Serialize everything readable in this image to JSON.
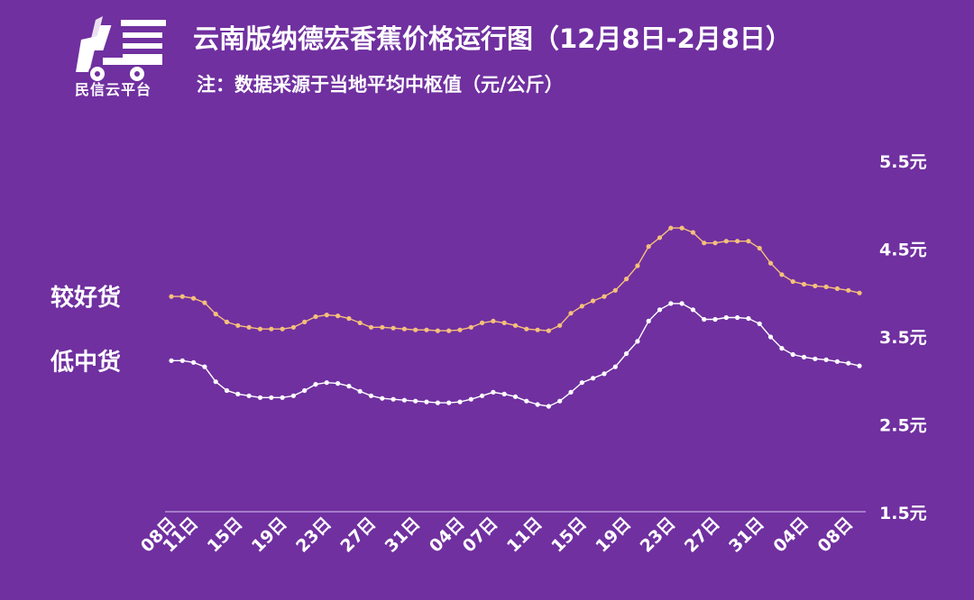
{
  "header": {
    "title": "云南版纳德宏香蕉价格运行图（12月8日-2月8日）",
    "subtitle": "注：数据采源于当地平均中枢值（元/公斤）",
    "logo_text": "民信云平台"
  },
  "colors": {
    "background": "#7030a0",
    "series_good": "#f5c07a",
    "series_low": "#ffffff",
    "axis": "#d9c6ee"
  },
  "chart_data": {
    "type": "line",
    "title": "云南版纳德宏香蕉价格运行图（12月8日-2月8日）",
    "ylim": [
      1.5,
      5.5
    ],
    "yticks": [
      1.5,
      2.5,
      3.5,
      4.5,
      5.5
    ],
    "ytick_labels": [
      "1.5元",
      "2.5元",
      "3.5元",
      "4.5元",
      "5.5元"
    ],
    "xtick_labels": [
      "08日",
      "11日",
      "15日",
      "19日",
      "23日",
      "27日",
      "31日",
      "04日",
      "07日",
      "11日",
      "15日",
      "19日",
      "23日",
      "27日",
      "31日",
      "04日",
      "08日"
    ],
    "xtick_positions": [
      0,
      2,
      6,
      10,
      14,
      18,
      22,
      26,
      29,
      33,
      37,
      41,
      45,
      49,
      53,
      57,
      61
    ],
    "series": [
      {
        "name": "较好货",
        "values": [
          3.95,
          3.95,
          3.93,
          3.88,
          3.75,
          3.66,
          3.62,
          3.6,
          3.58,
          3.58,
          3.58,
          3.6,
          3.66,
          3.72,
          3.74,
          3.73,
          3.7,
          3.65,
          3.6,
          3.6,
          3.59,
          3.58,
          3.57,
          3.57,
          3.56,
          3.56,
          3.57,
          3.6,
          3.65,
          3.67,
          3.65,
          3.62,
          3.58,
          3.57,
          3.56,
          3.62,
          3.76,
          3.84,
          3.9,
          3.95,
          4.02,
          4.15,
          4.3,
          4.52,
          4.62,
          4.73,
          4.73,
          4.68,
          4.56,
          4.56,
          4.58,
          4.58,
          4.58,
          4.5,
          4.33,
          4.2,
          4.12,
          4.09,
          4.07,
          4.06,
          4.04,
          4.02,
          3.99
        ]
      },
      {
        "name": "低中货",
        "values": [
          3.22,
          3.22,
          3.2,
          3.15,
          2.98,
          2.88,
          2.84,
          2.82,
          2.8,
          2.8,
          2.8,
          2.82,
          2.88,
          2.95,
          2.97,
          2.96,
          2.93,
          2.87,
          2.82,
          2.79,
          2.78,
          2.77,
          2.76,
          2.75,
          2.74,
          2.74,
          2.75,
          2.78,
          2.82,
          2.86,
          2.84,
          2.81,
          2.76,
          2.72,
          2.7,
          2.76,
          2.86,
          2.97,
          3.02,
          3.07,
          3.15,
          3.3,
          3.44,
          3.67,
          3.8,
          3.87,
          3.87,
          3.8,
          3.69,
          3.69,
          3.71,
          3.71,
          3.7,
          3.64,
          3.49,
          3.36,
          3.29,
          3.26,
          3.24,
          3.23,
          3.21,
          3.19,
          3.16
        ]
      }
    ],
    "legend": "left, next to each line"
  }
}
